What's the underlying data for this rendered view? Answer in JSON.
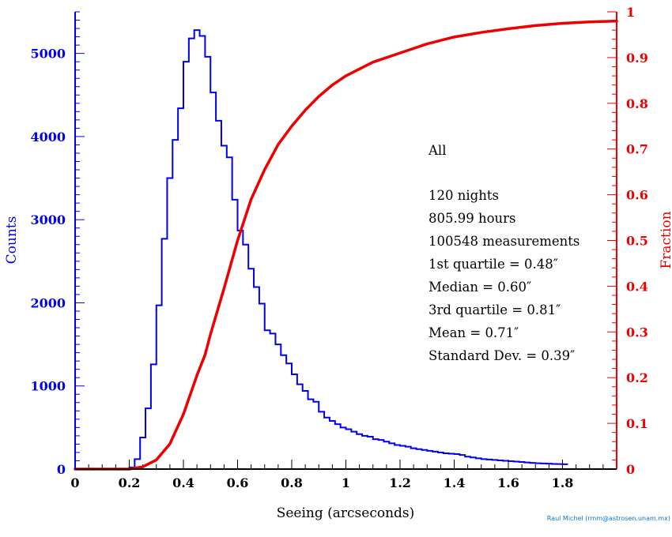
{
  "chart_data": {
    "type": "bar",
    "xlabel": "Seeing (arcseconds)",
    "ylabel": "Counts",
    "y2label": "Fraction",
    "xlim": [
      0,
      2.0
    ],
    "ylim": [
      0,
      5500
    ],
    "y2lim": [
      0,
      1.0
    ],
    "grid": false,
    "xticks": [
      0,
      0.2,
      0.4,
      0.6,
      0.8,
      1,
      1.2,
      1.4,
      1.6,
      1.8
    ],
    "xtick_labels": [
      "0",
      "0.2",
      "0.4",
      "0.6",
      "0.8",
      "1",
      "1.2",
      "1.4",
      "1.6",
      "1.8"
    ],
    "yticks": [
      0,
      1000,
      2000,
      3000,
      4000,
      5000
    ],
    "ytick_labels": [
      "0",
      "1000",
      "2000",
      "3000",
      "4000",
      "5000"
    ],
    "y2ticks": [
      0,
      0.1,
      0.2,
      0.3,
      0.4,
      0.5,
      0.6,
      0.7,
      0.8,
      0.9,
      1
    ],
    "y2tick_labels": [
      "0",
      "0.1",
      "0.2",
      "0.3",
      "0.4",
      "0.5",
      "0.6",
      "0.7",
      "0.8",
      "0.9",
      "1"
    ],
    "colors": {
      "histogram": "#0000ee",
      "cumulative": "#ee0000",
      "credit": "#0a78d0"
    },
    "histogram": {
      "bin_width": 0.02,
      "bin_start": 0.2,
      "counts": [
        20,
        120,
        380,
        730,
        1260,
        1970,
        2770,
        3500,
        3960,
        4340,
        4900,
        5180,
        5280,
        5210,
        4960,
        4530,
        4190,
        3890,
        3750,
        3240,
        2870,
        2700,
        2410,
        2190,
        1990,
        1670,
        1630,
        1500,
        1370,
        1270,
        1140,
        1020,
        940,
        840,
        810,
        690,
        620,
        580,
        540,
        500,
        480,
        450,
        420,
        400,
        390,
        360,
        350,
        330,
        310,
        290,
        280,
        270,
        250,
        240,
        230,
        220,
        210,
        200,
        190,
        185,
        180,
        170,
        150,
        140,
        130,
        120,
        115,
        110,
        105,
        100,
        95,
        90,
        85,
        80,
        75,
        70,
        68,
        65,
        62,
        60,
        58
      ]
    },
    "cumulative": {
      "x": [
        0,
        0.2,
        0.25,
        0.3,
        0.35,
        0.4,
        0.45,
        0.48,
        0.5,
        0.55,
        0.6,
        0.65,
        0.7,
        0.75,
        0.8,
        0.85,
        0.9,
        0.95,
        1.0,
        1.1,
        1.2,
        1.3,
        1.4,
        1.5,
        1.6,
        1.7,
        1.8,
        1.9,
        2.0
      ],
      "y": [
        0,
        0.0,
        0.005,
        0.02,
        0.055,
        0.12,
        0.205,
        0.25,
        0.295,
        0.395,
        0.5,
        0.59,
        0.655,
        0.71,
        0.75,
        0.785,
        0.815,
        0.84,
        0.86,
        0.89,
        0.91,
        0.93,
        0.945,
        0.955,
        0.963,
        0.97,
        0.975,
        0.978,
        0.98
      ]
    }
  },
  "annotation": {
    "category": "All",
    "nights": "120 nights",
    "hours": "805.99 hours",
    "measurements": "100548 measurements",
    "q1": "1st quartile = 0.48″",
    "median": "Median = 0.60″",
    "q3": "3rd quartile = 0.81″",
    "mean": "Mean = 0.71″",
    "std": "Standard Dev. = 0.39″"
  },
  "credit": "Raul Michel (rmm@astrosen.unam.mx)"
}
